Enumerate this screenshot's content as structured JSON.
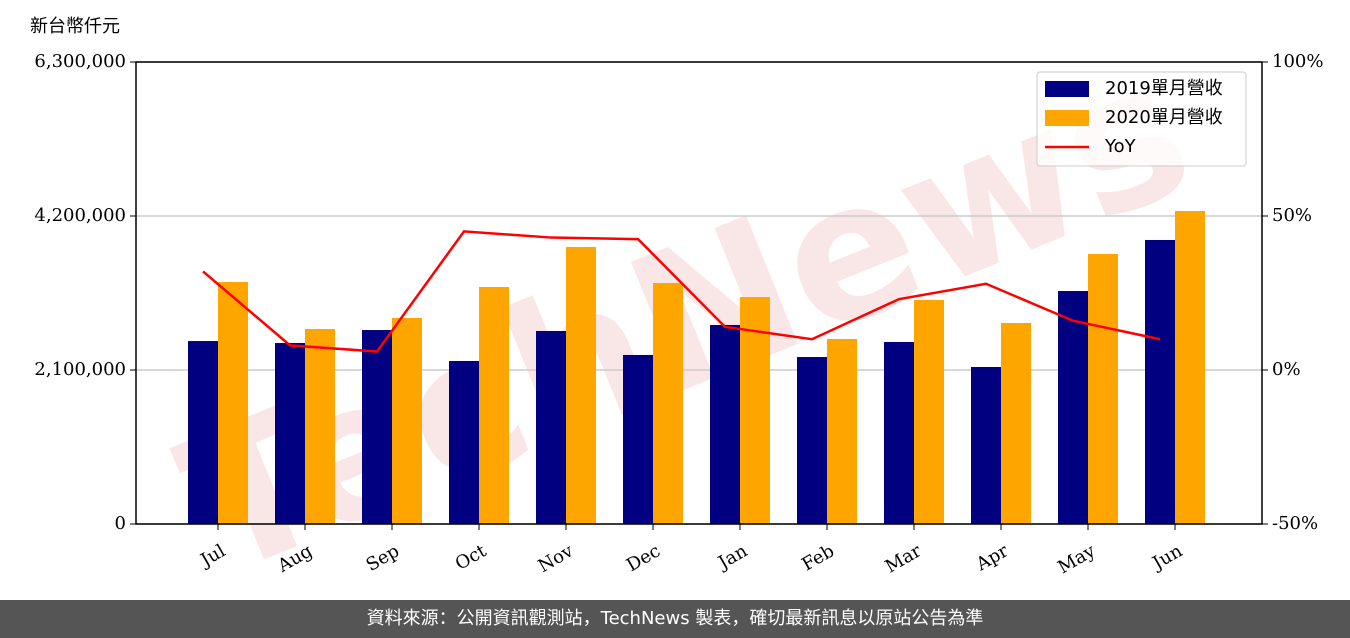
{
  "chart_data": {
    "type": "bar",
    "y_label": "新台幣仟元",
    "watermark": "TechNews",
    "source": "資料來源：公開資訊觀測站，TechNews 製表，確切最新訊息以原站公告為準",
    "categories": [
      "Jul",
      "Aug",
      "Sep",
      "Oct",
      "Nov",
      "Dec",
      "Jan",
      "Feb",
      "Mar",
      "Apr",
      "May",
      "Jun"
    ],
    "series": [
      {
        "name": "2019單月營收",
        "color": "#000080",
        "type": "bar",
        "values": [
          2495000,
          2468000,
          2645000,
          2223000,
          2632000,
          2305000,
          2714000,
          2277000,
          2482000,
          2141000,
          3177000,
          3873000
        ]
      },
      {
        "name": "2020單月營收",
        "color": "#ffa500",
        "type": "bar",
        "values": [
          3300000,
          2659000,
          2809000,
          3232000,
          3777000,
          3286000,
          3095000,
          2523000,
          3055000,
          2741000,
          3682000,
          4268000
        ]
      },
      {
        "name": "YoY",
        "color": "#ff0000",
        "type": "line",
        "axis": "y2",
        "values": [
          32,
          8,
          6,
          45,
          43,
          42.5,
          14,
          10,
          23,
          28,
          16,
          10
        ]
      }
    ],
    "ylim": [
      0,
      6300000
    ],
    "yticks": [
      0,
      {
        "value": 2100000,
        "label": "2,100,000"
      },
      {
        "value": 4200000,
        "label": "4,200,000"
      },
      {
        "value": 6300000,
        "label": "6,300,000"
      }
    ],
    "y2lim": [
      -50,
      100
    ],
    "y2ticks": [
      {
        "value": -50,
        "label": "-50%"
      },
      {
        "value": 0,
        "label": "0%"
      },
      {
        "value": 50,
        "label": "50%"
      },
      {
        "value": 100,
        "label": "100%"
      }
    ],
    "grid": true,
    "legend": "upper right"
  }
}
